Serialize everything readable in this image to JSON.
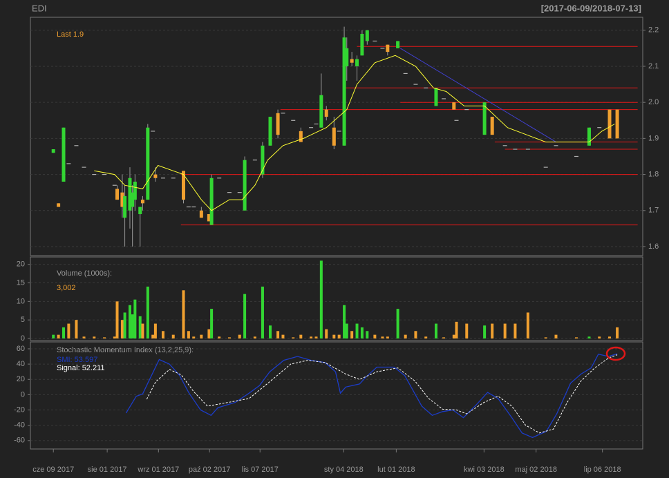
{
  "chart_data": [
    {
      "type": "candlestick",
      "title": "EDI",
      "subtitle": "[2017-06-09/2018-07-13]",
      "annotation": "Last 1.9",
      "up_color": "#33d633",
      "down_color": "#f0a030",
      "flat_color": "#b0b0b0",
      "xlim": [
        -9,
        231
      ],
      "ylim": [
        1.575,
        2.236
      ],
      "yticks": [
        1.6,
        1.7,
        1.8,
        1.9,
        {
          "value": 2,
          "label": "2.0"
        },
        2.1,
        2.2
      ],
      "grid": true,
      "x": [
        0,
        2,
        4,
        6,
        9,
        12,
        16,
        20,
        24,
        25,
        27,
        28,
        30,
        31,
        32,
        34,
        35,
        37,
        39,
        40,
        43,
        47,
        51,
        53,
        55,
        58,
        61,
        62,
        65,
        69,
        73,
        75,
        79,
        82,
        85,
        88,
        90,
        94,
        97,
        101,
        103,
        105,
        107,
        110,
        112,
        114,
        115,
        117,
        119,
        121,
        123,
        126,
        129,
        131,
        135,
        138,
        142,
        146,
        150,
        153,
        157,
        158,
        162,
        169,
        172,
        177,
        181,
        186,
        193,
        197,
        205,
        210,
        214,
        218,
        221
      ],
      "open": [
        1.86,
        1.72,
        1.78,
        1.83,
        1.88,
        1.82,
        1.8,
        1.8,
        1.77,
        1.76,
        1.75,
        1.68,
        1.7,
        1.71,
        1.73,
        1.69,
        1.73,
        1.73,
        1.92,
        1.8,
        1.79,
        1.79,
        1.81,
        1.71,
        1.71,
        1.7,
        1.69,
        1.66,
        1.79,
        1.75,
        1.75,
        1.7,
        1.84,
        1.8,
        1.88,
        1.97,
        1.97,
        1.95,
        1.92,
        1.93,
        1.94,
        1.93,
        1.98,
        1.93,
        1.92,
        1.88,
        2.1,
        2.12,
        2.1,
        2.13,
        2.17,
        2.17,
        2.15,
        2.16,
        2.15,
        2.08,
        2.05,
        2.04,
        1.99,
        2.01,
        2.0,
        1.95,
        1.98,
        1.91,
        1.96,
        1.88,
        1.87,
        1.87,
        1.82,
        1.88,
        1.85,
        1.88,
        1.93,
        1.98,
        1.98
      ],
      "high": [
        1.87,
        1.72,
        1.93,
        1.83,
        1.88,
        1.82,
        1.8,
        1.8,
        1.77,
        1.77,
        1.8,
        1.77,
        1.82,
        1.77,
        1.8,
        1.71,
        1.74,
        1.94,
        1.92,
        1.82,
        1.79,
        1.79,
        1.81,
        1.71,
        1.71,
        1.71,
        1.69,
        1.8,
        1.79,
        1.75,
        1.75,
        1.85,
        1.84,
        1.89,
        1.96,
        1.98,
        1.97,
        1.95,
        1.93,
        1.93,
        1.94,
        2.08,
        1.99,
        1.96,
        1.92,
        2.21,
        2.18,
        2.14,
        2.13,
        2.2,
        2.2,
        2.17,
        2.15,
        2.16,
        2.17,
        2.08,
        2.05,
        2.04,
        2.04,
        2.01,
        2.0,
        1.95,
        1.98,
        2.0,
        1.96,
        1.88,
        1.87,
        1.87,
        1.82,
        1.88,
        1.85,
        1.93,
        1.93,
        1.98,
        1.98
      ],
      "low": [
        1.86,
        1.71,
        1.78,
        1.83,
        1.88,
        1.82,
        1.8,
        1.8,
        1.77,
        1.73,
        1.68,
        1.6,
        1.65,
        1.6,
        1.7,
        1.6,
        1.7,
        1.73,
        1.92,
        1.78,
        1.79,
        1.79,
        1.72,
        1.71,
        1.71,
        1.68,
        1.67,
        1.66,
        1.79,
        1.75,
        1.75,
        1.7,
        1.84,
        1.79,
        1.88,
        1.9,
        1.97,
        1.95,
        1.89,
        1.93,
        1.94,
        1.93,
        1.95,
        1.87,
        1.92,
        1.88,
        2.06,
        2.1,
        2.06,
        2.13,
        2.16,
        2.17,
        2.15,
        2.13,
        2.15,
        2.08,
        2.05,
        2.04,
        1.99,
        2.01,
        1.98,
        1.95,
        1.98,
        1.91,
        1.91,
        1.88,
        1.87,
        1.87,
        1.82,
        1.88,
        1.85,
        1.88,
        1.93,
        1.9,
        1.9
      ],
      "close": [
        1.87,
        1.71,
        1.93,
        1.83,
        1.88,
        1.82,
        1.8,
        1.8,
        1.77,
        1.73,
        1.71,
        1.74,
        1.79,
        1.75,
        1.78,
        1.71,
        1.72,
        1.93,
        1.92,
        1.79,
        1.79,
        1.79,
        1.73,
        1.71,
        1.71,
        1.68,
        1.67,
        1.79,
        1.79,
        1.75,
        1.75,
        1.84,
        1.84,
        1.88,
        1.96,
        1.91,
        1.97,
        1.95,
        1.89,
        1.93,
        1.94,
        2.02,
        1.96,
        1.88,
        1.92,
        2.18,
        2.15,
        2.11,
        2.12,
        2.19,
        2.2,
        2.17,
        2.15,
        2.14,
        2.17,
        2.08,
        2.05,
        2.04,
        2.04,
        2.01,
        1.98,
        1.95,
        1.98,
        2.0,
        1.91,
        1.88,
        1.87,
        1.87,
        1.82,
        1.88,
        1.85,
        1.93,
        1.93,
        1.9,
        1.9
      ],
      "ema": {
        "color": "#ffff33",
        "x": [
          16,
          24,
          28,
          35,
          41,
          51,
          58,
          62,
          69,
          74,
          79,
          84,
          90,
          98,
          107,
          115,
          119,
          126,
          134,
          142,
          149,
          154,
          161,
          169,
          178,
          193,
          204,
          210,
          215,
          220
        ],
        "values": [
          1.81,
          1.8,
          1.77,
          1.76,
          1.825,
          1.8,
          1.73,
          1.7,
          1.73,
          1.73,
          1.77,
          1.84,
          1.88,
          1.9,
          1.93,
          1.98,
          2.05,
          2.11,
          2.13,
          2.1,
          2.04,
          2.03,
          1.99,
          1.99,
          1.93,
          1.89,
          1.89,
          1.89,
          1.92,
          1.94
        ]
      },
      "lines": [
        {
          "color": "#e01818",
          "x": [
            119,
            229
          ],
          "y": [
            2.155,
            2.155
          ]
        },
        {
          "color": "#e01818",
          "x": [
            114,
            229
          ],
          "y": [
            2.04,
            2.04
          ]
        },
        {
          "color": "#e01818",
          "x": [
            136,
            229
          ],
          "y": [
            2.0,
            2.0
          ]
        },
        {
          "color": "#e01818",
          "x": [
            89,
            229
          ],
          "y": [
            1.98,
            1.98
          ]
        },
        {
          "color": "#e01818",
          "x": [
            173,
            229
          ],
          "y": [
            1.89,
            1.89
          ]
        },
        {
          "color": "#e01818",
          "x": [
            177,
            229
          ],
          "y": [
            1.87,
            1.87
          ]
        },
        {
          "color": "#e01818",
          "x": [
            50,
            229
          ],
          "y": [
            1.8,
            1.8
          ]
        },
        {
          "color": "#e01818",
          "x": [
            50,
            229
          ],
          "y": [
            1.66,
            1.66
          ]
        },
        {
          "color": "#4040d0",
          "x": [
            136,
            197
          ],
          "y": [
            2.15,
            1.89
          ]
        }
      ]
    },
    {
      "type": "bar",
      "title": "Volume (1000s):",
      "annotation": "3,002",
      "up_color": "#33d633",
      "down_color": "#f0a030",
      "xlim": [
        -9,
        231
      ],
      "ylim": [
        -0.56,
        22
      ],
      "yticks": [
        0,
        5,
        10,
        15,
        20
      ],
      "grid": true,
      "x": [
        0,
        2,
        4,
        6,
        9,
        12,
        16,
        20,
        24,
        25,
        27,
        28,
        30,
        31,
        32,
        34,
        35,
        37,
        39,
        40,
        43,
        47,
        51,
        53,
        55,
        58,
        61,
        62,
        65,
        69,
        73,
        75,
        79,
        82,
        85,
        88,
        90,
        94,
        97,
        101,
        103,
        105,
        107,
        110,
        112,
        114,
        115,
        117,
        119,
        121,
        123,
        126,
        129,
        131,
        135,
        138,
        142,
        146,
        150,
        153,
        157,
        158,
        162,
        169,
        172,
        177,
        181,
        186,
        193,
        197,
        205,
        210,
        214,
        218,
        221
      ],
      "values": [
        1,
        1,
        3,
        4,
        5,
        0.5,
        0.5,
        0.3,
        0.5,
        10,
        5,
        7,
        9,
        6.5,
        10.5,
        6,
        4,
        14,
        1,
        4,
        2,
        1,
        13,
        2,
        0.5,
        1,
        2.5,
        8,
        0.5,
        0.3,
        1,
        12,
        0.5,
        14,
        3.5,
        2,
        1,
        0.3,
        1,
        0.5,
        0.5,
        21,
        2.5,
        1,
        1,
        9,
        4,
        2,
        4,
        3,
        2,
        1,
        0.5,
        0.5,
        8,
        1,
        2,
        0.5,
        4,
        0.3,
        1,
        4.5,
        4,
        3.5,
        4,
        4,
        4,
        7,
        0.3,
        1,
        0.3,
        0.5,
        0.5,
        0.5,
        3.002
      ]
    },
    {
      "type": "line",
      "title": "Stochastic Momentum Index (13,2,25,9):",
      "smi_label": "SMI: 53.597",
      "signal_label": "Signal: 52.211",
      "xlim": [
        -9,
        231
      ],
      "ylim": [
        -71,
        69
      ],
      "yticks": [
        -60,
        -40,
        -20,
        0,
        20,
        40,
        60
      ],
      "grid": true,
      "xticks": [
        {
          "value": 0,
          "label": "cze 09 2017"
        },
        {
          "value": 21.1,
          "label": "sie 01 2017"
        },
        {
          "value": 41.2,
          "label": "wrz 01 2017"
        },
        {
          "value": 61.2,
          "label": "paź 02 2017"
        },
        {
          "value": 81,
          "label": "lis 07 2017"
        },
        {
          "value": 113.8,
          "label": "sty 04 2018"
        },
        {
          "value": 134.4,
          "label": "lut 01 2018"
        },
        {
          "value": 168.8,
          "label": "kwi 03 2018"
        },
        {
          "value": 189.2,
          "label": "maj 02 2018"
        },
        {
          "value": 215.2,
          "label": "lip 06 2018"
        }
      ],
      "series": [
        {
          "name": "SMI",
          "color": "#1c3cc8",
          "dash": false,
          "x": [
            28.5,
            32.5,
            35,
            37,
            41.5,
            45.5,
            49.5,
            53,
            57.7,
            61.8,
            64.5,
            71.3,
            76.7,
            80.8,
            84.8,
            90.3,
            95.7,
            101,
            106.5,
            110.6,
            112.5,
            114.6,
            120,
            122.8,
            126.8,
            133.6,
            137.7,
            144.4,
            148.5,
            152.6,
            156.6,
            160.7,
            166.1,
            170.2,
            174.3,
            179.7,
            183.7,
            187.8,
            193.2,
            197.3,
            202.7,
            206.8,
            210.8,
            213.6,
            217.6,
            221
          ],
          "values": [
            -24,
            -2,
            1,
            15,
            46,
            40,
            25,
            3,
            -20,
            -27,
            -17,
            -10,
            2,
            12,
            30,
            45,
            50,
            45,
            42,
            30,
            2,
            10,
            14,
            24,
            36,
            36,
            25,
            -15,
            -27,
            -22,
            -20,
            -30,
            -12,
            3,
            -5,
            -30,
            -50,
            -56,
            -48,
            -25,
            15,
            27,
            35,
            53,
            50,
            53.597
          ]
        },
        {
          "name": "Signal",
          "color": "#ffffff",
          "dash": true,
          "x": [
            36.6,
            40.1,
            45.5,
            50.1,
            55,
            60.4,
            68.6,
            76.7,
            84.8,
            93,
            99.7,
            106.5,
            114.6,
            120,
            126.8,
            135,
            141.7,
            147.1,
            152.6,
            158,
            162,
            168.8,
            174.3,
            179.7,
            185.1,
            190.5,
            196,
            201.4,
            206.8,
            212.2,
            217.6,
            221
          ],
          "values": [
            -6,
            17,
            33,
            26,
            4,
            -15,
            -10,
            -5,
            17,
            40,
            45,
            42,
            27,
            20,
            30,
            35,
            18,
            -5,
            -19,
            -20,
            -25,
            -10,
            -2,
            -15,
            -40,
            -50,
            -45,
            -10,
            18,
            35,
            48,
            52.211
          ]
        }
      ]
    }
  ]
}
